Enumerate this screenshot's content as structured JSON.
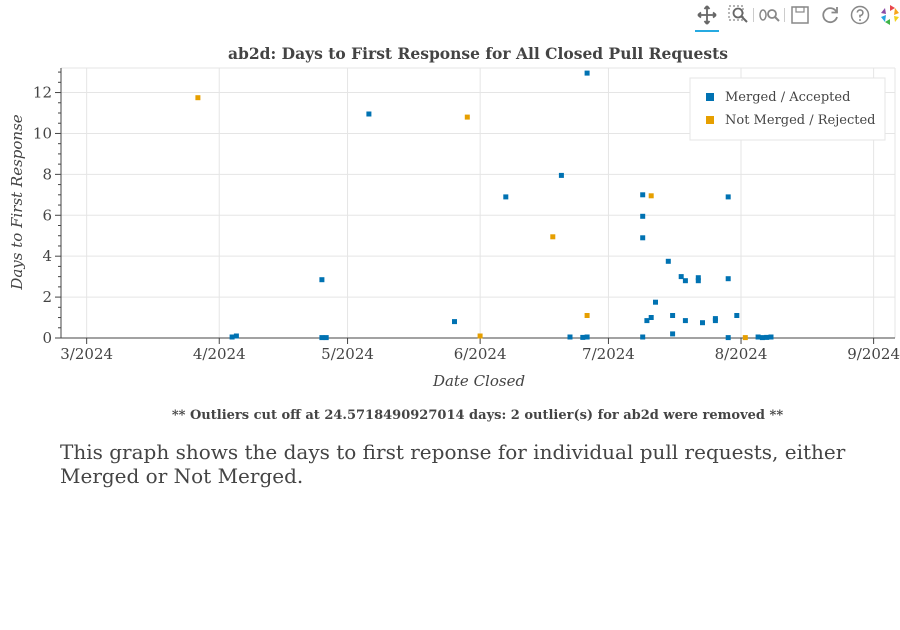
{
  "toolbar": {
    "pan": "pan-icon",
    "box_zoom": "box-zoom-icon",
    "wheel_zoom": "wheel-zoom-icon",
    "save": "save-icon",
    "reset": "reset-icon",
    "help": "help-icon",
    "logo": "bokeh-logo-icon"
  },
  "chart_data": {
    "type": "scatter",
    "title": "ab2d: Days to First Response for All Closed Pull Requests",
    "xlabel": "Date Closed",
    "ylabel": "Days to First Response",
    "xlim": [
      "2024-02-24",
      "2024-09-06"
    ],
    "ylim": [
      0,
      13.2
    ],
    "x_ticks": [
      "2024-03-01",
      "2024-04-01",
      "2024-05-01",
      "2024-06-01",
      "2024-07-01",
      "2024-08-01",
      "2024-09-01"
    ],
    "x_tick_labels": [
      "3/2024",
      "4/2024",
      "5/2024",
      "6/2024",
      "7/2024",
      "8/2024",
      "9/2024"
    ],
    "y_ticks": [
      0,
      2,
      4,
      6,
      8,
      10,
      12
    ],
    "grid": true,
    "legend_position": "top-right",
    "series": [
      {
        "name": "Merged / Accepted",
        "color": "#0072b2",
        "points": [
          [
            "2024-04-04",
            0.05
          ],
          [
            "2024-04-05",
            0.1
          ],
          [
            "2024-04-25",
            2.85
          ],
          [
            "2024-04-25",
            0.02
          ],
          [
            "2024-04-26",
            0.02
          ],
          [
            "2024-05-06",
            10.95
          ],
          [
            "2024-05-26",
            0.8
          ],
          [
            "2024-06-07",
            6.9
          ],
          [
            "2024-06-20",
            7.95
          ],
          [
            "2024-06-22",
            0.05
          ],
          [
            "2024-06-25",
            0.03
          ],
          [
            "2024-06-26",
            0.05
          ],
          [
            "2024-06-26",
            12.95
          ],
          [
            "2024-07-09",
            7.0
          ],
          [
            "2024-07-09",
            5.95
          ],
          [
            "2024-07-09",
            4.9
          ],
          [
            "2024-07-09",
            0.05
          ],
          [
            "2024-07-10",
            0.85
          ],
          [
            "2024-07-11",
            1.0
          ],
          [
            "2024-07-12",
            1.75
          ],
          [
            "2024-07-15",
            3.75
          ],
          [
            "2024-07-16",
            1.1
          ],
          [
            "2024-07-16",
            0.2
          ],
          [
            "2024-07-18",
            3.0
          ],
          [
            "2024-07-19",
            2.8
          ],
          [
            "2024-07-19",
            0.85
          ],
          [
            "2024-07-22",
            2.95
          ],
          [
            "2024-07-22",
            2.8
          ],
          [
            "2024-07-23",
            0.75
          ],
          [
            "2024-07-26",
            0.95
          ],
          [
            "2024-07-26",
            0.85
          ],
          [
            "2024-07-29",
            6.9
          ],
          [
            "2024-07-29",
            2.9
          ],
          [
            "2024-07-29",
            0.02
          ],
          [
            "2024-07-31",
            1.1
          ],
          [
            "2024-08-05",
            0.05
          ],
          [
            "2024-08-06",
            0.02
          ],
          [
            "2024-08-07",
            0.03
          ],
          [
            "2024-08-08",
            0.05
          ]
        ]
      },
      {
        "name": "Not Merged / Rejected",
        "color": "#e69f00",
        "points": [
          [
            "2024-03-27",
            11.75
          ],
          [
            "2024-05-29",
            10.8
          ],
          [
            "2024-06-01",
            0.1
          ],
          [
            "2024-06-18",
            4.95
          ],
          [
            "2024-06-26",
            1.1
          ],
          [
            "2024-07-11",
            6.95
          ],
          [
            "2024-08-02",
            0.02
          ]
        ]
      }
    ],
    "footnote": "** Outliers cut off at 24.5718490927014 days: 2 outlier(s) for ab2d were removed **"
  },
  "caption": "This graph shows the days to first reponse for individual pull requests, either Merged or Not Merged."
}
